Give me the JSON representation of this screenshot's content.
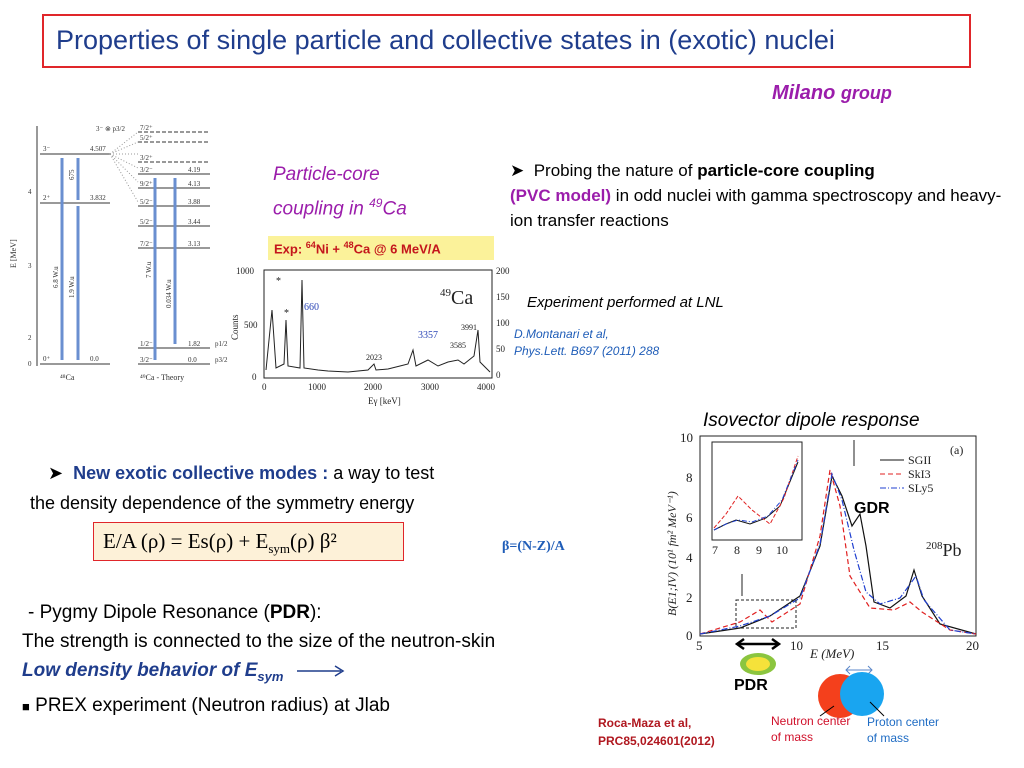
{
  "title": "Properties of single particle and collective states in (exotic) nuclei",
  "group": {
    "name": "Milano",
    "suffix": "group"
  },
  "particle_core": {
    "line1": "Particle-core",
    "line2_pre": "coupling in ",
    "isotope_mass": "49",
    "element": "Ca"
  },
  "probing": {
    "pre": "Probing the nature of ",
    "bold1": "particle-core coupling",
    "bold2": "(PVC model)",
    "post": " in odd nuclei with gamma spectroscopy and heavy-ion transfer reactions"
  },
  "experiment_lnl": "Experiment performed at LNL",
  "reference_top": {
    "line1": "D.Montanari et al,",
    "line2": "Phys.Lett. B697 (2011) 288"
  },
  "exp_label": {
    "pre": "Exp: ",
    "ni_mass": "64",
    "ni": "Ni + ",
    "ca_mass": "48",
    "ca": "Ca @ 6 MeV/A"
  },
  "collective": {
    "bold": "New exotic  collective modes :",
    "text1": " a way to test",
    "text2": "the density dependence of the symmetry energy"
  },
  "formula": {
    "lhs": "E/A (ρ) = Es(ρ) + E",
    "sub": "sym",
    "rhs": "(ρ) β²"
  },
  "beta_def": "β=(N-Z)/A",
  "pygmy": {
    "line1_pre": "- Pygmy Dipole Resonance (",
    "line1_bold": "PDR",
    "line1_post": "):",
    "line2": "The strength is connected to the size of the neutron-skin",
    "line3_pre": "Low density behavior of E",
    "line3_sub": "sym",
    "line4": "PREX experiment (Neutron radius) at Jlab"
  },
  "iso_title": "Isovector dipole response",
  "pdr_label": "PDR",
  "gdr_label": "GDR",
  "reference_bottom": {
    "line1": "Roca-Maza et al,",
    "line2": "PRC85,024601(2012)"
  },
  "neutron_center": {
    "line1": "Neutron center",
    "line2": "of mass"
  },
  "proton_center": {
    "line1": "Proton center",
    "line2": "of mass"
  },
  "level_scheme": {
    "axis_label": "E [MeV]",
    "y_ticks": [
      "0",
      "1",
      "2",
      "3",
      "4"
    ],
    "ca48_levels": [
      {
        "jp": "3⁻",
        "e": "4.507"
      },
      {
        "jp": "2⁺",
        "e": "3.832"
      },
      {
        "jp": "0⁺",
        "e": "0.0"
      }
    ],
    "ca48_label": "⁴⁸Ca",
    "ca49_label": "⁴⁹Ca - Theory",
    "ca49_levels": [
      {
        "jp": "7/2⁺",
        "e": ""
      },
      {
        "jp": "5/2⁺",
        "e": ""
      },
      {
        "jp": "3/2⁺",
        "e": ""
      },
      {
        "jp": "3/2⁻",
        "e": "4.19"
      },
      {
        "jp": "9/2⁺",
        "e": "4.13"
      },
      {
        "jp": "5/2⁻",
        "e": "3.88"
      },
      {
        "jp": "5/2⁻",
        "e": "3.44"
      },
      {
        "jp": "7/2⁻",
        "e": "3.13"
      },
      {
        "jp": "1/2⁻",
        "e": "1.82"
      },
      {
        "jp": "3/2⁻",
        "e": "0.0"
      }
    ],
    "top_state": "3⁻ ⊗ p3/2",
    "transitions": [
      "675",
      "6.8 W.u",
      "1.9 W.u",
      "7 W.u",
      "0.034 W.u"
    ],
    "state_labels": [
      "p1/2",
      "p3/2"
    ]
  },
  "spectrum": {
    "ylabel": "Counts",
    "xlabel": "Eγ [keV]",
    "y_ticks": [
      "1000",
      "500",
      "0"
    ],
    "y2_ticks": [
      "200",
      "150",
      "100",
      "50",
      "0"
    ],
    "x_ticks": [
      "0",
      "1000",
      "2000",
      "3000",
      "4000"
    ],
    "nucleus_mass": "49",
    "nucleus": "Ca",
    "peaks": [
      "660",
      "2023",
      "3357",
      "3585",
      "3991"
    ],
    "star": "*"
  },
  "gdr_plot": {
    "ylabel": "B(E1;IV)  (10¹ fm² MeV⁻¹)",
    "xlabel": "E (MeV)",
    "y_ticks": [
      "0",
      "2",
      "4",
      "6",
      "8",
      "10"
    ],
    "x_ticks": [
      "5",
      "10",
      "15",
      "20"
    ],
    "panel": "(a)",
    "legend": [
      "SGII",
      "SkI3",
      "SLy5"
    ],
    "nucleus_mass": "208",
    "nucleus": "Pb",
    "inset_x_ticks": [
      "7",
      "8",
      "9",
      "10"
    ]
  }
}
